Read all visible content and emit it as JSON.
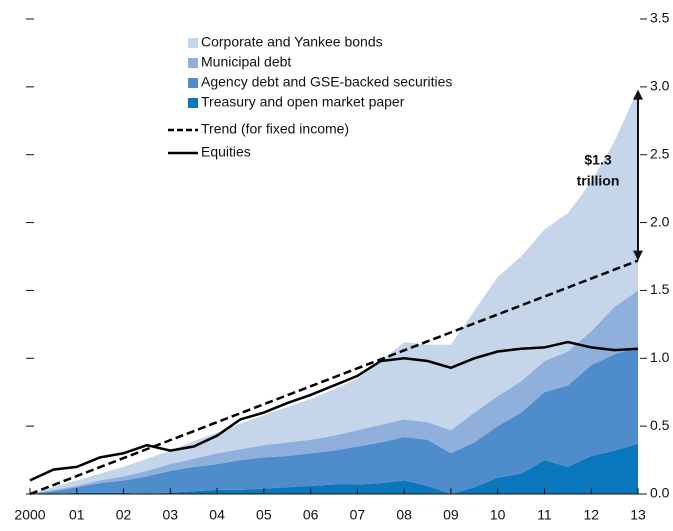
{
  "chart_data": {
    "type": "area",
    "x": [
      2000,
      2000.5,
      2001,
      2001.5,
      2002,
      2002.5,
      2003,
      2003.5,
      2004,
      2004.5,
      2005,
      2005.5,
      2006,
      2006.5,
      2007,
      2007.5,
      2008,
      2008.5,
      2009,
      2009.5,
      2010,
      2010.5,
      2011,
      2011.5,
      2012,
      2012.5,
      2013
    ],
    "xlim": [
      2000,
      2013
    ],
    "xticks": [
      {
        "value": 2000,
        "label": "2000"
      },
      {
        "value": 2001,
        "label": "01"
      },
      {
        "value": 2002,
        "label": "02"
      },
      {
        "value": 2003,
        "label": "03"
      },
      {
        "value": 2004,
        "label": "04"
      },
      {
        "value": 2005,
        "label": "05"
      },
      {
        "value": 2006,
        "label": "06"
      },
      {
        "value": 2007,
        "label": "07"
      },
      {
        "value": 2008,
        "label": "08"
      },
      {
        "value": 2009,
        "label": "09"
      },
      {
        "value": 2010,
        "label": "10"
      },
      {
        "value": 2011,
        "label": "11"
      },
      {
        "value": 2012,
        "label": "12"
      },
      {
        "value": 2013,
        "label": "13"
      }
    ],
    "ylim": [
      0,
      3.5
    ],
    "yticks": [
      {
        "value": 0,
        "label": "0.0"
      },
      0.5,
      {
        "value": 1,
        "label": "1.0"
      },
      1.5,
      {
        "value": 2,
        "label": "2.0"
      },
      2.5,
      {
        "value": 3,
        "label": "3.0"
      },
      3.5
    ],
    "series": [
      {
        "name": "Treasury and open market paper",
        "color": "#0a77bd",
        "values": [
          0,
          0,
          0.01,
          0.01,
          0.01,
          0,
          0.01,
          0.02,
          0.03,
          0.03,
          0.04,
          0.05,
          0.06,
          0.07,
          0.07,
          0.08,
          0.1,
          0.06,
          0,
          0.05,
          0.12,
          0.15,
          0.25,
          0.2,
          0.28,
          0.32,
          0.37
        ]
      },
      {
        "name": "Agency debt and GSE-backed securities",
        "color": "#4f8ccc",
        "values": [
          0,
          0.02,
          0.04,
          0.07,
          0.09,
          0.13,
          0.16,
          0.18,
          0.19,
          0.22,
          0.23,
          0.23,
          0.24,
          0.25,
          0.28,
          0.3,
          0.32,
          0.34,
          0.3,
          0.33,
          0.38,
          0.45,
          0.5,
          0.6,
          0.67,
          0.71,
          0.71
        ]
      },
      {
        "name": "Municipal debt",
        "color": "#8fb0dc",
        "values": [
          0,
          0.01,
          0.01,
          0.02,
          0.03,
          0.04,
          0.05,
          0.06,
          0.08,
          0.08,
          0.09,
          0.1,
          0.1,
          0.11,
          0.12,
          0.13,
          0.13,
          0.13,
          0.17,
          0.22,
          0.22,
          0.23,
          0.23,
          0.25,
          0.25,
          0.35,
          0.42
        ]
      },
      {
        "name": "Corporate and Yankee bonds",
        "color": "#c5d5ea",
        "values": [
          0,
          0.02,
          0.04,
          0.05,
          0.07,
          0.09,
          0.1,
          0.13,
          0.15,
          0.19,
          0.22,
          0.26,
          0.3,
          0.34,
          0.38,
          0.47,
          0.57,
          0.57,
          0.63,
          0.75,
          0.88,
          0.92,
          0.97,
          1.02,
          1.1,
          1.22,
          1.48
        ]
      },
      {
        "name": "Trend (for fixed income)",
        "type": "line",
        "dashed": true,
        "color": "#000000",
        "x": [
          2000,
          2013
        ],
        "values": [
          0,
          1.72
        ]
      },
      {
        "name": "Equities",
        "type": "line",
        "color": "#000000",
        "values": [
          0.1,
          0.18,
          0.2,
          0.27,
          0.3,
          0.36,
          0.32,
          0.35,
          0.43,
          0.55,
          0.6,
          0.67,
          0.73,
          0.8,
          0.87,
          0.98,
          1.0,
          0.98,
          0.93,
          1.0,
          1.05,
          1.07,
          1.08,
          1.12,
          1.08,
          1.06,
          1.07
        ]
      }
    ],
    "annotation": [
      "$1.3",
      "trillion"
    ]
  }
}
